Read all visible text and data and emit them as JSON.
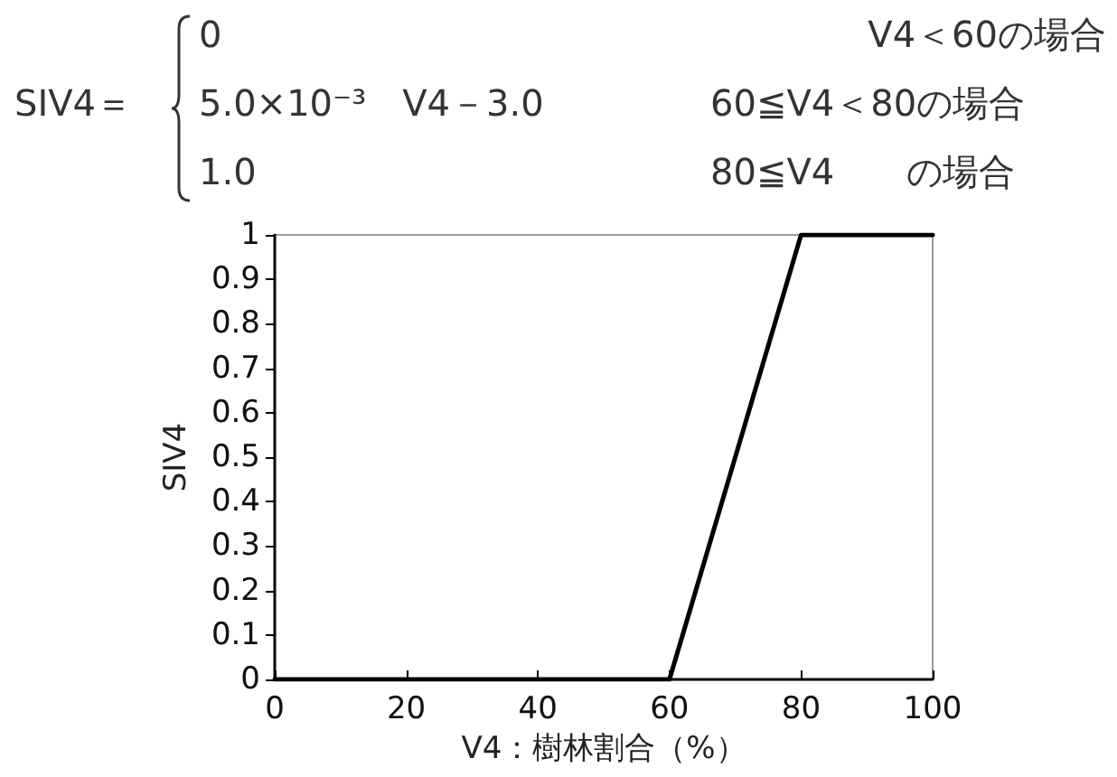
{
  "chart_data": {
    "type": "line",
    "annotations": [
      "SIV4＝",
      "0",
      "V4＜60の場合",
      "5.0×10⁻³　V4－3.0",
      "60≦V4＜80の場合",
      "1.0",
      "80≦V4　　の場合"
    ],
    "xlabel": "V4：樹林割合（%）",
    "ylabel": "SIV4",
    "x": [
      0,
      60,
      80,
      100
    ],
    "series": [
      {
        "color": "#000000",
        "values": [
          0,
          0,
          1,
          1
        ]
      }
    ],
    "xlim": [
      0,
      100
    ],
    "xticks": [
      0,
      20,
      40,
      60,
      80,
      100
    ],
    "ylim": [
      0,
      1
    ],
    "yticks": [
      0,
      0.1,
      0.2,
      0.3,
      0.4,
      0.5,
      0.6,
      0.7,
      0.8,
      0.9,
      1
    ],
    "grid": false,
    "marker": "none",
    "line_style": "solid"
  }
}
